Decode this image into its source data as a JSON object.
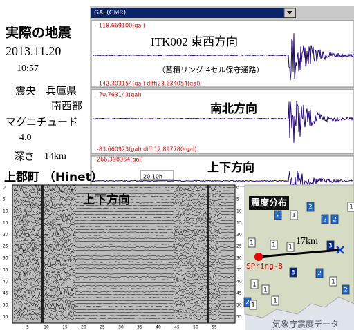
{
  "left_info": {
    "title": "実際の地震",
    "date": "2013.11.20",
    "time": "10:57",
    "epicenter_label": "震央",
    "epicenter_line1": "兵庫県",
    "epicenter_line2": "南西部",
    "magnitude_label": "マグニチュード",
    "magnitude": "4.0",
    "depth_label": "深さ",
    "depth": "14km"
  },
  "monitor": {
    "dropdown": "GAL(GMR)",
    "panels": [
      {
        "top_label": "-118.669100(gal)",
        "title": "ITK002 東西方向",
        "subtitle": "（蓄積リング 4セル保守通路）",
        "bottom_label": "-142.303154(gal) diff:23.634054(gal)"
      },
      {
        "top_label": "-70.763143(gal)",
        "title": "南北方向",
        "bottom_label": "-83.660923(gal) diff:12.897780(gal)"
      },
      {
        "top_label": "266.398364(gal)",
        "title": "上下方向"
      }
    ]
  },
  "hinet": {
    "title": "上郡町 （Hinet）",
    "stamp": "20 10h",
    "panel_label": "上下方向",
    "y_labels": [
      "0",
      "5",
      "10",
      "15",
      "20",
      "25",
      "30",
      "35",
      "40",
      "45",
      "50",
      "55"
    ],
    "x_labels": [
      "5",
      "10",
      "15",
      "20",
      "25",
      "30",
      "35",
      "40",
      "45",
      "50",
      "55"
    ]
  },
  "map": {
    "title": "震度分布",
    "distance": "17km",
    "site": "SPring-8",
    "source": "気象庁震度データ",
    "markers": [
      "1",
      "2",
      "1",
      "2",
      "2",
      "1",
      "1",
      "2",
      "3",
      "1",
      "3",
      "1",
      "2",
      "1",
      "1",
      "1",
      "2",
      "1",
      "2"
    ]
  }
}
